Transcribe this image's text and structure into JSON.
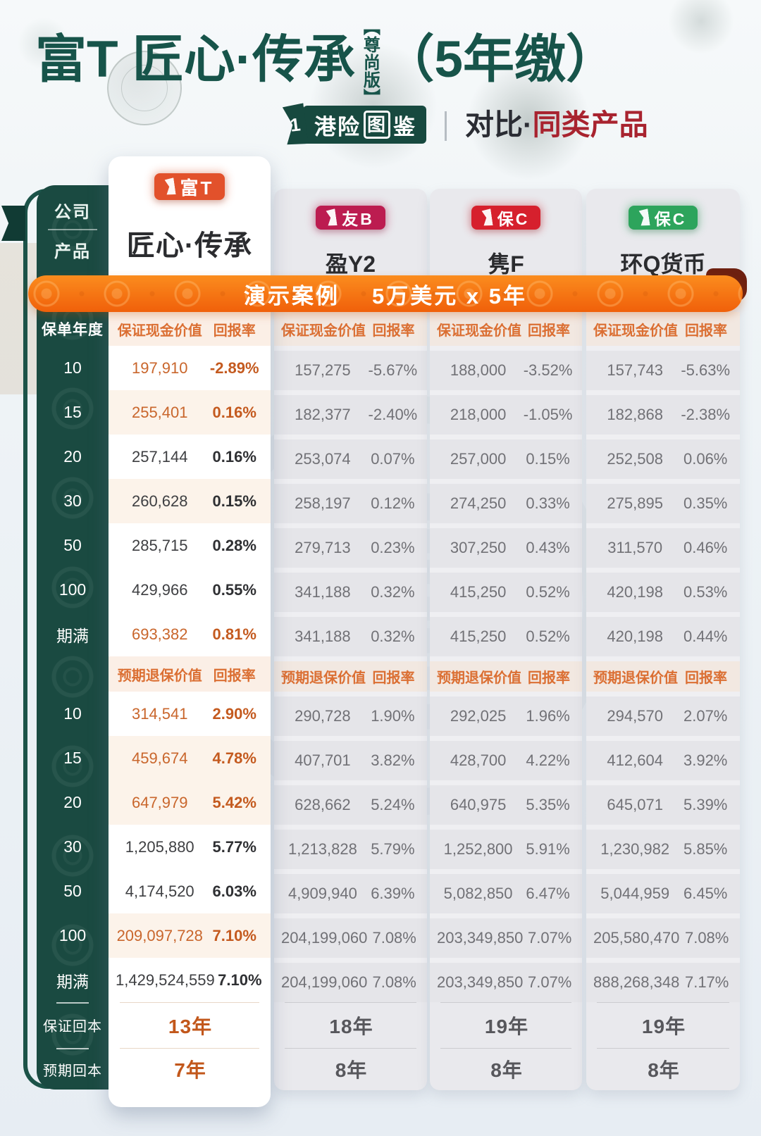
{
  "title": {
    "prefix": "富T 匠心·传承",
    "edition": "【尊尚版】",
    "suffix": "（5年缴）"
  },
  "subtitle": {
    "logo_pre": "港险",
    "logo_boxed": "图",
    "logo_post": "鉴",
    "logo_mark": "1",
    "compare_dark": "对比·",
    "compare_red": "同类产品"
  },
  "side": {
    "company_label": "公司",
    "product_label": "产品"
  },
  "products": [
    {
      "badge": "富T",
      "badge_color": "#E2512B",
      "name": "匠心·传承"
    },
    {
      "badge": "友B",
      "badge_color": "#BC1C50",
      "name": "盈Y2"
    },
    {
      "badge": "保C",
      "badge_color": "#D6202D",
      "name": "隽F"
    },
    {
      "badge": "保C",
      "badge_color": "#2DA45C",
      "name": "环Q货币"
    }
  ],
  "banner": {
    "label": "演示案例",
    "case": "5万美元 x 5年"
  },
  "watermark_char": "富",
  "colors": {
    "accent_orange": "#D96A2B",
    "teal_panel": "#1A4A41",
    "title_teal": "#17544A",
    "banner_orange": "#F2690D",
    "compare_red": "#A8232F"
  },
  "table": {
    "year_label": "保单年度",
    "sections": [
      {
        "value_header": "保证现金价值",
        "rate_header": "回报率",
        "rows": [
          {
            "year": "10",
            "accent": true,
            "tint": false,
            "cells": [
              [
                "197,910",
                "-2.89%"
              ],
              [
                "157,275",
                "-5.67%"
              ],
              [
                "188,000",
                "-3.52%"
              ],
              [
                "157,743",
                "-5.63%"
              ]
            ]
          },
          {
            "year": "15",
            "accent": true,
            "tint": true,
            "cells": [
              [
                "255,401",
                "0.16%"
              ],
              [
                "182,377",
                "-2.40%"
              ],
              [
                "218,000",
                "-1.05%"
              ],
              [
                "182,868",
                "-2.38%"
              ]
            ]
          },
          {
            "year": "20",
            "accent": false,
            "tint": false,
            "cells": [
              [
                "257,144",
                "0.16%"
              ],
              [
                "253,074",
                "0.07%"
              ],
              [
                "257,000",
                "0.15%"
              ],
              [
                "252,508",
                "0.06%"
              ]
            ]
          },
          {
            "year": "30",
            "accent": false,
            "tint": true,
            "cells": [
              [
                "260,628",
                "0.15%"
              ],
              [
                "258,197",
                "0.12%"
              ],
              [
                "274,250",
                "0.33%"
              ],
              [
                "275,895",
                "0.35%"
              ]
            ]
          },
          {
            "year": "50",
            "accent": false,
            "tint": false,
            "cells": [
              [
                "285,715",
                "0.28%"
              ],
              [
                "279,713",
                "0.23%"
              ],
              [
                "307,250",
                "0.43%"
              ],
              [
                "311,570",
                "0.46%"
              ]
            ]
          },
          {
            "year": "100",
            "accent": false,
            "tint": false,
            "cells": [
              [
                "429,966",
                "0.55%"
              ],
              [
                "341,188",
                "0.32%"
              ],
              [
                "415,250",
                "0.52%"
              ],
              [
                "420,198",
                "0.53%"
              ]
            ]
          },
          {
            "year": "期满",
            "accent": true,
            "tint": false,
            "cells": [
              [
                "693,382",
                "0.81%"
              ],
              [
                "341,188",
                "0.32%"
              ],
              [
                "415,250",
                "0.52%"
              ],
              [
                "420,198",
                "0.44%"
              ]
            ]
          }
        ]
      },
      {
        "value_header": "预期退保价值",
        "rate_header": "回报率",
        "rows": [
          {
            "year": "10",
            "accent": true,
            "tint": false,
            "cells": [
              [
                "314,541",
                "2.90%"
              ],
              [
                "290,728",
                "1.90%"
              ],
              [
                "292,025",
                "1.96%"
              ],
              [
                "294,570",
                "2.07%"
              ]
            ]
          },
          {
            "year": "15",
            "accent": true,
            "tint": true,
            "cells": [
              [
                "459,674",
                "4.78%"
              ],
              [
                "407,701",
                "3.82%"
              ],
              [
                "428,700",
                "4.22%"
              ],
              [
                "412,604",
                "3.92%"
              ]
            ]
          },
          {
            "year": "20",
            "accent": true,
            "tint": true,
            "cells": [
              [
                "647,979",
                "5.42%"
              ],
              [
                "628,662",
                "5.24%"
              ],
              [
                "640,975",
                "5.35%"
              ],
              [
                "645,071",
                "5.39%"
              ]
            ]
          },
          {
            "year": "30",
            "accent": false,
            "tint": false,
            "cells": [
              [
                "1,205,880",
                "5.77%"
              ],
              [
                "1,213,828",
                "5.79%"
              ],
              [
                "1,252,800",
                "5.91%"
              ],
              [
                "1,230,982",
                "5.85%"
              ]
            ]
          },
          {
            "year": "50",
            "accent": false,
            "tint": false,
            "cells": [
              [
                "4,174,520",
                "6.03%"
              ],
              [
                "4,909,940",
                "6.39%"
              ],
              [
                "5,082,850",
                "6.47%"
              ],
              [
                "5,044,959",
                "6.45%"
              ]
            ]
          },
          {
            "year": "100",
            "accent": true,
            "tint": true,
            "cells": [
              [
                "209,097,728",
                "7.10%"
              ],
              [
                "204,199,060",
                "7.08%"
              ],
              [
                "203,349,850",
                "7.07%"
              ],
              [
                "205,580,470",
                "7.08%"
              ]
            ]
          },
          {
            "year": "期满",
            "accent": false,
            "tint": false,
            "cells": [
              [
                "1,429,524,559",
                "7.10%"
              ],
              [
                "204,199,060",
                "7.08%"
              ],
              [
                "203,349,850",
                "7.07%"
              ],
              [
                "888,268,348",
                "7.17%"
              ]
            ]
          }
        ]
      }
    ],
    "footer_rows": [
      {
        "label": "保证回本",
        "values": [
          "13年",
          "18年",
          "19年",
          "19年"
        ]
      },
      {
        "label": "预期回本",
        "values": [
          "7年",
          "8年",
          "8年",
          "8年"
        ]
      }
    ]
  }
}
